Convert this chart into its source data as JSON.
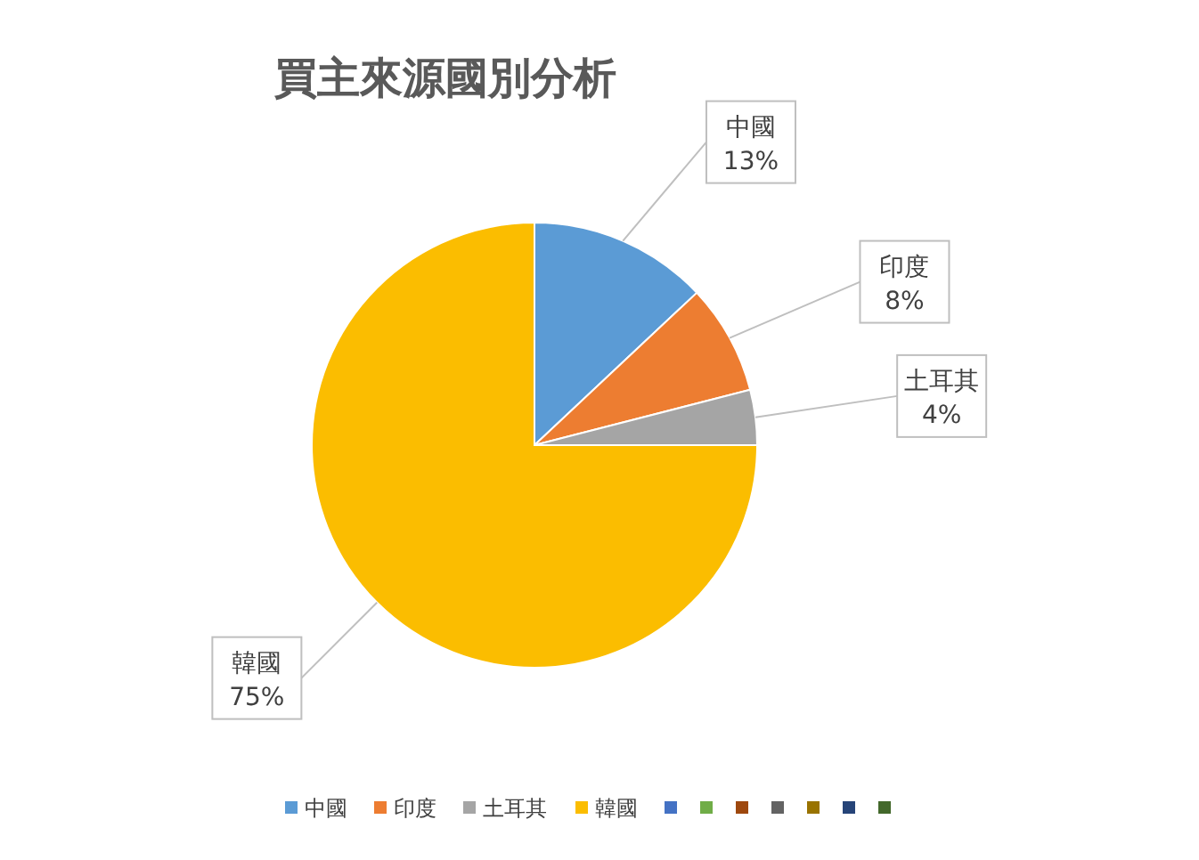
{
  "chart_data": {
    "type": "pie",
    "title": "買主來源國別分析",
    "categories": [
      "中國",
      "印度",
      "土耳其",
      "韓國",
      null,
      null,
      null,
      null,
      null,
      null,
      null
    ],
    "values": [
      13,
      8,
      4,
      75,
      0,
      0,
      0,
      0,
      0,
      0,
      0
    ],
    "colors": [
      "#5b9bd5",
      "#ed7d31",
      "#a5a5a5",
      "#fbbd00",
      "#4472c4",
      "#70ad47",
      "#9e480e",
      "#636363",
      "#997300",
      "#264478",
      "#43682b"
    ],
    "value_labels": [
      "13%",
      "8%",
      "4%",
      "75%",
      null,
      null,
      null,
      null,
      null,
      null,
      null
    ],
    "legend": "bottom"
  }
}
